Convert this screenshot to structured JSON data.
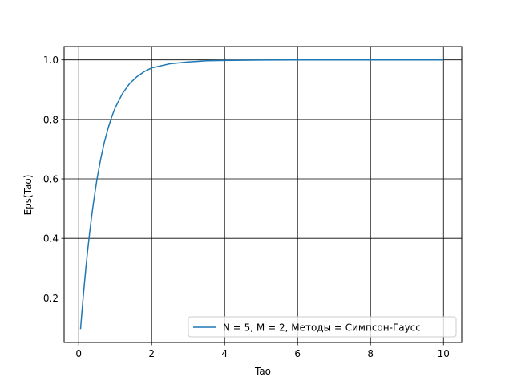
{
  "chart_data": {
    "type": "line",
    "title": "",
    "xlabel": "Tao",
    "ylabel": "Eps(Tao)",
    "xlim": [
      -0.4,
      10.5
    ],
    "ylim": [
      0.05,
      1.045
    ],
    "xticks": [
      0,
      2,
      4,
      6,
      8,
      10
    ],
    "yticks": [
      0.2,
      0.4,
      0.6,
      0.8,
      1.0
    ],
    "xtick_labels": [
      "0",
      "2",
      "4",
      "6",
      "8",
      "10"
    ],
    "ytick_labels": [
      "0.2",
      "0.4",
      "0.6",
      "0.8",
      "1.0"
    ],
    "grid": true,
    "legend_position": "bottom-right",
    "series": [
      {
        "name": "N = 5, M = 2, Методы = Симпсон-Гаусс",
        "color": "#1f77b4",
        "x": [
          0.05,
          0.1,
          0.15,
          0.2,
          0.25,
          0.3,
          0.35,
          0.4,
          0.5,
          0.6,
          0.7,
          0.8,
          0.9,
          1.0,
          1.2,
          1.4,
          1.6,
          1.8,
          2.0,
          2.5,
          3.0,
          3.5,
          4.0,
          5.0,
          6.0,
          7.0,
          8.0,
          9.0,
          10.0
        ],
        "y": [
          0.095,
          0.17,
          0.24,
          0.305,
          0.364,
          0.419,
          0.47,
          0.516,
          0.598,
          0.665,
          0.722,
          0.768,
          0.807,
          0.839,
          0.887,
          0.921,
          0.944,
          0.961,
          0.973,
          0.987,
          0.993,
          0.997,
          0.998,
          0.9995,
          0.9999,
          1.0,
          1.0,
          1.0,
          1.0
        ]
      }
    ]
  }
}
